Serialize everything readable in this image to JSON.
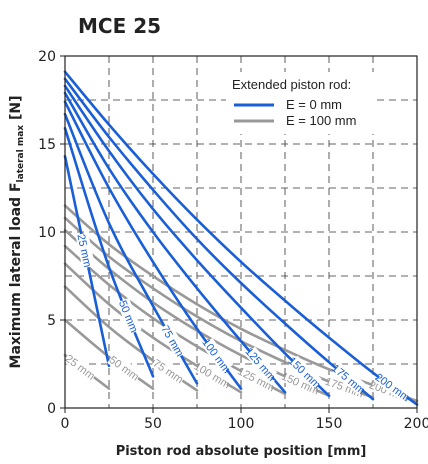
{
  "chart_data": {
    "type": "line",
    "title": "MCE 25",
    "xlabel": "Piston rod absolute position [mm]",
    "ylabel": {
      "main": "Maximum lateral load F",
      "subscript": "lateral max",
      "unit": " [N]"
    },
    "xlim": [
      0,
      200
    ],
    "ylim": [
      0,
      20
    ],
    "x_ticks": [
      0,
      50,
      100,
      150,
      200
    ],
    "y_ticks": [
      0,
      5,
      10,
      15,
      20
    ],
    "grid": "dashed",
    "legend": {
      "title": "Extended piston rod:",
      "placement": "top-right",
      "entries": [
        {
          "label": "E = 0 mm",
          "color": "#1a5fd6"
        },
        {
          "label": "E = 100 mm",
          "color": "#999999"
        }
      ]
    },
    "colors": {
      "blue": "#1a5fd6",
      "gray": "#999999"
    },
    "series": [
      {
        "group": "E = 0 mm",
        "label": "25 mm",
        "x": [
          0,
          25
        ],
        "y": [
          14.3,
          2.4
        ]
      },
      {
        "group": "E = 0 mm",
        "label": "50 mm",
        "x": [
          0,
          25,
          50
        ],
        "y": [
          15.9,
          8.0,
          1.8
        ]
      },
      {
        "group": "E = 0 mm",
        "label": "75 mm",
        "x": [
          0,
          25,
          50,
          75
        ],
        "y": [
          16.7,
          10.5,
          5.8,
          1.4
        ]
      },
      {
        "group": "E = 0 mm",
        "label": "100 mm",
        "x": [
          0,
          25,
          50,
          75,
          100
        ],
        "y": [
          17.4,
          12.5,
          8.3,
          4.5,
          1.1
        ]
      },
      {
        "group": "E = 0 mm",
        "label": "125 mm",
        "x": [
          0,
          25,
          50,
          75,
          100,
          125
        ],
        "y": [
          17.9,
          13.6,
          10.0,
          6.8,
          3.8,
          0.9
        ]
      },
      {
        "group": "E = 0 mm",
        "label": "150 mm",
        "x": [
          0,
          25,
          50,
          75,
          100,
          125,
          150
        ],
        "y": [
          18.3,
          14.6,
          11.3,
          8.4,
          5.7,
          3.1,
          0.7
        ]
      },
      {
        "group": "E = 0 mm",
        "label": "175 mm",
        "x": [
          0,
          25,
          50,
          75,
          100,
          125,
          150,
          175
        ],
        "y": [
          18.7,
          15.4,
          12.4,
          9.6,
          7.1,
          4.8,
          2.6,
          0.5
        ]
      },
      {
        "group": "E = 0 mm",
        "label": "200 mm",
        "x": [
          0,
          25,
          50,
          75,
          100,
          125,
          150,
          175,
          200
        ],
        "y": [
          19.1,
          16.1,
          13.3,
          10.7,
          8.3,
          6.1,
          4.0,
          2.0,
          0.2
        ]
      },
      {
        "group": "E = 100 mm",
        "label": "25 mm",
        "x": [
          0,
          25
        ],
        "y": [
          3.0,
          1.1
        ]
      },
      {
        "group": "E = 100 mm",
        "label": "50 mm",
        "x": [
          0,
          25,
          50
        ],
        "y": [
          5.0,
          2.9,
          1.1
        ]
      },
      {
        "group": "E = 100 mm",
        "label": "75 mm",
        "x": [
          0,
          25,
          50,
          75
        ],
        "y": [
          6.9,
          4.6,
          2.7,
          1.0
        ]
      },
      {
        "group": "E = 100 mm",
        "label": "100 mm",
        "x": [
          0,
          25,
          50,
          75,
          100
        ],
        "y": [
          8.2,
          5.9,
          4.0,
          2.4,
          0.9
        ]
      },
      {
        "group": "E = 100 mm",
        "label": "125 mm",
        "x": [
          0,
          25,
          50,
          75,
          100,
          125
        ],
        "y": [
          9.2,
          7.0,
          5.1,
          3.5,
          2.1,
          0.8
        ]
      },
      {
        "group": "E = 100 mm",
        "label": "150 mm",
        "x": [
          0,
          25,
          50,
          75,
          100,
          125,
          150
        ],
        "y": [
          10.1,
          7.9,
          6.0,
          4.4,
          3.0,
          1.8,
          0.7
        ]
      },
      {
        "group": "E = 100 mm",
        "label": "175 mm",
        "x": [
          0,
          25,
          50,
          75,
          100,
          125,
          150,
          175
        ],
        "y": [
          10.8,
          8.6,
          6.8,
          5.2,
          3.8,
          2.6,
          1.5,
          0.6
        ]
      },
      {
        "group": "E = 100 mm",
        "label": "200 mm",
        "x": [
          0,
          25,
          50,
          75,
          100,
          125,
          150,
          175,
          200
        ],
        "y": [
          11.5,
          9.3,
          7.5,
          5.9,
          4.5,
          3.3,
          2.2,
          1.3,
          0.4
        ]
      }
    ]
  }
}
